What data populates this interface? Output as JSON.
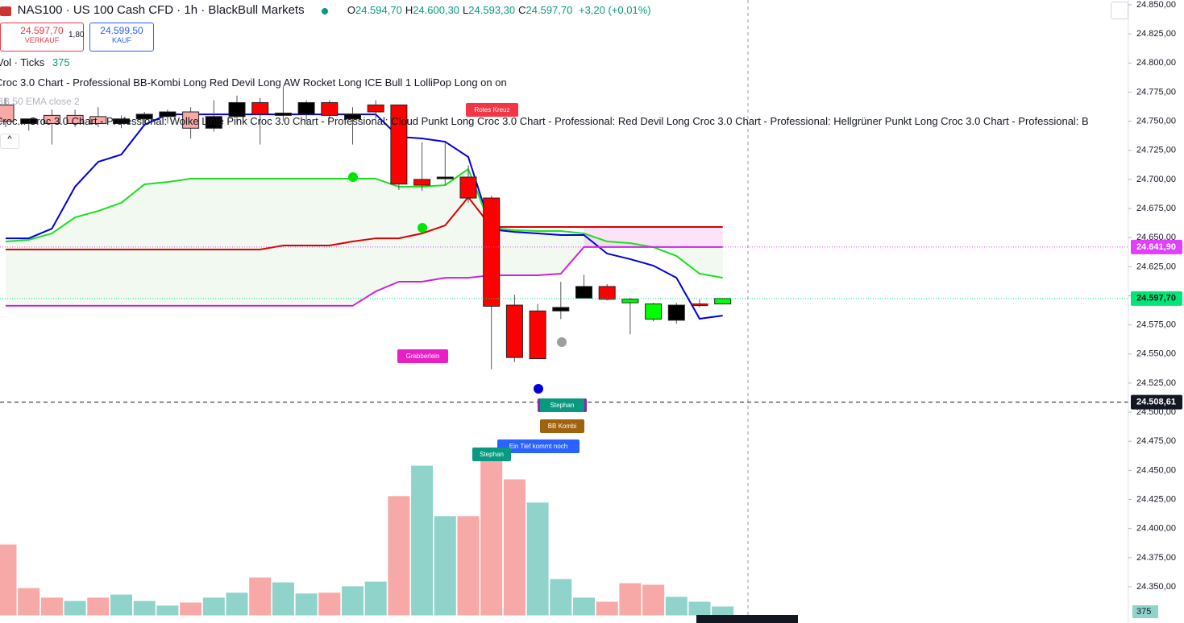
{
  "header": {
    "symbol": "NAS100 · US 100 Cash CFD · 1h · BlackBull Markets",
    "ohlc": [
      {
        "key": "O",
        "value": "24.594,70"
      },
      {
        "key": "H",
        "value": "24.600,30"
      },
      {
        "key": "L",
        "value": "24.593,30"
      },
      {
        "key": "C",
        "value": "24.597,70"
      }
    ],
    "change": "+3,20 (+0,01%)",
    "sell_price": "24.597,70",
    "sell_label": "VERKAUF",
    "spread": "1,80",
    "buy_price": "24.599,50",
    "buy_label": "KAUF",
    "volume_legend": "Vol · Ticks",
    "indicator_1": "Croc 3.0 Chart - Professional BB-Kombi Long Red Devil Long AW Rocket Long ICE Bull 1 LolliPop Long on on",
    "indicator_2": "BB 50 EMA close 2",
    "indicator_3": "Croc... Croc 3.0 Chart - Professional: Wolke Linie Pink Croc 3.0 Chart - Professional: Cloud Punkt Long Croc 3.0 Chart - Professional: Red Devil Long Croc 3.0 Chart - Professional: Hellgrüner Punkt Long Croc 3.0 Chart - Professional: B"
  },
  "chart_data": {
    "type": "candlestick",
    "ylim": [
      24850,
      24325
    ],
    "yticks": [
      {
        "value": 24850,
        "label": "24.850,00"
      },
      {
        "value": 24825,
        "label": "24.825,00"
      },
      {
        "value": 24800,
        "label": "24.800,00"
      },
      {
        "value": 24775,
        "label": "24.775,00"
      },
      {
        "value": 24750,
        "label": "24.750,00"
      },
      {
        "value": 24725,
        "label": "24.725,00"
      },
      {
        "value": 24700,
        "label": "24.700,00"
      },
      {
        "value": 24675,
        "label": "24.675,00"
      },
      {
        "value": 24650,
        "label": "24.650,00"
      },
      {
        "value": 24625,
        "label": "24.625,00"
      },
      {
        "value": 24600,
        "label": "24.600,00"
      },
      {
        "value": 24575,
        "label": "24.575,00"
      },
      {
        "value": 24550,
        "label": "24.550,00"
      },
      {
        "value": 24525,
        "label": "24.525,00"
      },
      {
        "value": 24500,
        "label": "24.500,00"
      },
      {
        "value": 24475,
        "label": "24.475,00"
      },
      {
        "value": 24450,
        "label": "24.450,00"
      },
      {
        "value": 24425,
        "label": "24.425,00"
      },
      {
        "value": 24400,
        "label": "24.400,00"
      },
      {
        "value": 24375,
        "label": "24.375,00"
      },
      {
        "value": 24350,
        "label": "24.350,00"
      }
    ],
    "open": [
      24764,
      24748,
      24755,
      24755,
      24754,
      24748,
      24752,
      24754,
      24758,
      24744,
      24754,
      24766,
      24755,
      24756,
      24766,
      24752,
      24764,
      24764,
      24700,
      24701,
      24702,
      24684,
      24592,
      24587,
      24587,
      24598,
      24608,
      24597,
      24580,
      24579,
      24593,
      24593
    ],
    "high": [
      24770,
      24752,
      24760,
      24760,
      24762,
      24755,
      24758,
      24760,
      24762,
      24768,
      24772,
      24770,
      24780,
      24768,
      24768,
      24762,
      24768,
      24764,
      24732,
      24732,
      24712,
      24686,
      24601,
      24593,
      24612,
      24618,
      24610,
      24598,
      24594,
      24594,
      24597,
      24598
    ],
    "low": [
      24745,
      24742,
      24730,
      24745,
      24745,
      24744,
      24748,
      24748,
      24735,
      24741,
      24748,
      24730,
      24750,
      24750,
      24752,
      24730,
      24752,
      24691,
      24690,
      24695,
      24680,
      24537,
      24543,
      24547,
      24580,
      24598,
      24596,
      24567,
      24578,
      24576,
      24590,
      24593
    ],
    "close": [
      24750,
      24752,
      24748,
      24748,
      24748,
      24752,
      24756,
      24758,
      24744,
      24754,
      24766,
      24756,
      24757,
      24766,
      24755,
      24756,
      24758,
      24696,
      24695,
      24702,
      24684,
      24591,
      24547,
      24546,
      24590,
      24608,
      24597,
      24594,
      24593,
      24592,
      24593,
      24597.7
    ],
    "candle_colors": [
      "#f7a9a7",
      "#000000",
      "#f7a9a7",
      "#f7a9a7",
      "#f7a9a7",
      "#000000",
      "#000000",
      "#000000",
      "#f7a9a7",
      "#000000",
      "#000000",
      "#ff0000",
      "#000000",
      "#000000",
      "#ff0000",
      "#000000",
      "#ff0000",
      "#ff0000",
      "#ff0000",
      "#000000",
      "#ff0000",
      "#ff0000",
      "#ff0000",
      "#ff0000",
      "#000000",
      "#000000",
      "#ff0000",
      "#00ff00",
      "#00ff00",
      "#000000",
      "#ff0000",
      "#00ff00"
    ],
    "lines": [
      {
        "color": "#0000dd",
        "values": [
          24649.4,
          24649.4,
          24657.7,
          24693.7,
          24715.1,
          24721.4,
          24746.9,
          24755.9,
          24755.9,
          24755.9,
          24755.9,
          24755.9,
          24755.9,
          24755.9,
          24755.9,
          24755.9,
          24755.9,
          24736.6,
          24735.2,
          24732.4,
          24719.3,
          24657.0,
          24654.9,
          24653.6,
          24652.2,
          24652.2,
          24636.3,
          24631.5,
          24625.9,
          24615.5,
          24580.3,
          24583.0
        ]
      },
      {
        "color": "#22dd22",
        "values": [
          24646.7,
          24648.1,
          24653.6,
          24667.4,
          24672.9,
          24679.9,
          24695.8,
          24697.8,
          24700.6,
          24700.6,
          24700.6,
          24700.6,
          24700.6,
          24700.6,
          24700.6,
          24700.6,
          24700.6,
          24693.7,
          24693.7,
          24695.1,
          24708.9,
          24658.4,
          24656.4,
          24655.7,
          24655.7,
          24653.6,
          24646.7,
          24645.3,
          24641.8,
          24634.2,
          24619.0,
          24615.5
        ]
      },
      {
        "color": "#dd0000",
        "values": [
          24639.8,
          24639.8,
          24639.8,
          24639.8,
          24639.8,
          24639.8,
          24639.8,
          24639.8,
          24639.8,
          24639.8,
          24639.8,
          24639.8,
          24643.2,
          24643.2,
          24643.2,
          24646.7,
          24649.4,
          24649.4,
          24653.6,
          24660.5,
          24684.7,
          24659.1,
          24659.1,
          24659.1,
          24659.1,
          24659.1,
          24659.1,
          24659.1,
          24659.1,
          24659.1,
          24659.1,
          24659.1
        ]
      },
      {
        "color": "#cc22dd",
        "values": [
          24591.4,
          24591.4,
          24591.4,
          24591.4,
          24591.4,
          24591.4,
          24591.4,
          24591.4,
          24591.4,
          24591.4,
          24591.4,
          24591.4,
          24591.4,
          24591.4,
          24591.4,
          24591.4,
          24603.8,
          24612.1,
          24612.1,
          24615.5,
          24615.5,
          24617.6,
          24617.6,
          24617.6,
          24619.0,
          24641.9,
          24641.9,
          24641.9,
          24641.9,
          24641.9,
          24641.9,
          24641.9
        ]
      }
    ],
    "price_lines": [
      {
        "value": 24641.9,
        "label": "24.641,90",
        "color": "#e040fb"
      },
      {
        "value": 24597.7,
        "label": "24.597,70",
        "color": "#00e676"
      },
      {
        "value": 24508.61,
        "label": "24.508,61",
        "color": "#131722"
      }
    ],
    "volume": {
      "values": [
        2780,
        1090,
        720,
        590,
        720,
        840,
        590,
        410,
        530,
        720,
        910,
        1500,
        1310,
        880,
        910,
        1160,
        1340,
        4660,
        5840,
        3880,
        3880,
        6030,
        5310,
        4410,
        1440,
        720,
        560,
        1280,
        1220,
        750,
        560,
        375
      ],
      "colors": [
        "#f7a9a7",
        "#f7a9a7",
        "#f7a9a7",
        "#8fd3cb",
        "#f7a9a7",
        "#8fd3cb",
        "#8fd3cb",
        "#8fd3cb",
        "#f7a9a7",
        "#8fd3cb",
        "#8fd3cb",
        "#f7a9a7",
        "#8fd3cb",
        "#8fd3cb",
        "#f7a9a7",
        "#8fd3cb",
        "#8fd3cb",
        "#f7a9a7",
        "#8fd3cb",
        "#8fd3cb",
        "#f7a9a7",
        "#f7a9a7",
        "#f7a9a7",
        "#8fd3cb",
        "#8fd3cb",
        "#8fd3cb",
        "#f7a9a7",
        "#f7a9a7",
        "#f7a9a7",
        "#8fd3cb",
        "#8fd3cb",
        "#8fd3cb"
      ]
    },
    "annotations": [
      "Rotes Kreuz",
      "Grabberlein",
      "Stephan",
      "BB Kombi",
      "Ein Tief kommt noch",
      "Stephan"
    ]
  }
}
